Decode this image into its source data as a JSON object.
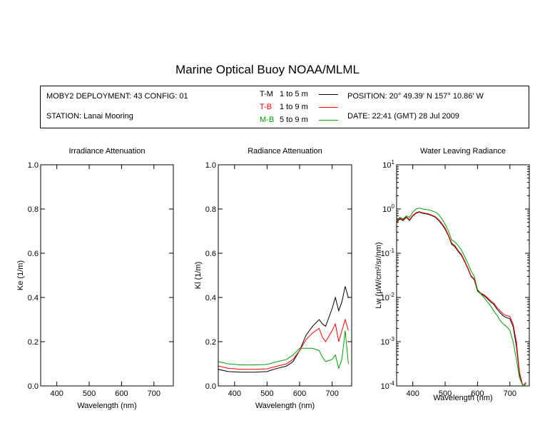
{
  "page": {
    "title": "Marine Optical Buoy NOAA/MLML"
  },
  "info": {
    "deployment": "MOBY2 DEPLOYMENT: 43 CONFIG: 01",
    "station": "STATION: Lanai Mooring",
    "position": "POSITION: 20° 49.39' N   157° 10.86' W",
    "date": "DATE: 22:41 (GMT) 28 Jul 2009",
    "legend": [
      {
        "code": "T-M",
        "range": "1 to 5  m",
        "color": "#000000"
      },
      {
        "code": "T-B",
        "range": "1 to 9  m",
        "color": "#ff0000"
      },
      {
        "code": "M-B",
        "range": "5 to 9  m",
        "color": "#00a000"
      }
    ]
  },
  "chart_data": [
    {
      "type": "line",
      "title": "Irradiance Attenuation",
      "xlabel": "Wavelength (nm)",
      "ylabel": "Ke  (1/m)",
      "xlim": [
        350,
        760
      ],
      "ylim": [
        0,
        1.0
      ],
      "xticks": [
        400,
        500,
        600,
        700
      ],
      "yticks": [
        0.0,
        0.2,
        0.4,
        0.6,
        0.8,
        1.0
      ],
      "ytick_labels": [
        "0.0",
        "0.2",
        "0.4",
        "0.6",
        "0.8",
        "1.0"
      ],
      "series": []
    },
    {
      "type": "line",
      "title": "Radiance Attenuation",
      "xlabel": "Wavelength (nm)",
      "ylabel": "Kl  (1/m)",
      "xlim": [
        350,
        760
      ],
      "ylim": [
        0,
        1.0
      ],
      "xticks": [
        400,
        500,
        600,
        700
      ],
      "yticks": [
        0.0,
        0.2,
        0.4,
        0.6,
        0.8,
        1.0
      ],
      "ytick_labels": [
        "0.0",
        "0.2",
        "0.4",
        "0.6",
        "0.8",
        "1.0"
      ],
      "series": [
        {
          "name": "T-M",
          "color": "#000000",
          "x": [
            350,
            380,
            420,
            460,
            500,
            520,
            560,
            580,
            600,
            620,
            640,
            660,
            670,
            680,
            700,
            710,
            720,
            730,
            740,
            750
          ],
          "y": [
            0.075,
            0.065,
            0.062,
            0.062,
            0.065,
            0.075,
            0.09,
            0.11,
            0.16,
            0.23,
            0.27,
            0.3,
            0.28,
            0.27,
            0.35,
            0.4,
            0.34,
            0.38,
            0.45,
            0.4
          ]
        },
        {
          "name": "T-B",
          "color": "#ff0000",
          "x": [
            350,
            380,
            420,
            460,
            500,
            520,
            560,
            580,
            600,
            620,
            640,
            660,
            670,
            680,
            700,
            710,
            720,
            730,
            740,
            750
          ],
          "y": [
            0.09,
            0.08,
            0.075,
            0.075,
            0.077,
            0.085,
            0.1,
            0.12,
            0.16,
            0.21,
            0.24,
            0.26,
            0.22,
            0.2,
            0.25,
            0.28,
            0.2,
            0.25,
            0.3,
            0.25
          ]
        },
        {
          "name": "M-B",
          "color": "#00a000",
          "x": [
            350,
            380,
            420,
            460,
            500,
            520,
            560,
            580,
            600,
            620,
            640,
            660,
            670,
            680,
            700,
            710,
            720,
            730,
            740,
            750
          ],
          "y": [
            0.11,
            0.1,
            0.095,
            0.095,
            0.097,
            0.105,
            0.12,
            0.14,
            0.17,
            0.17,
            0.17,
            0.16,
            0.13,
            0.11,
            0.12,
            0.14,
            0.08,
            0.12,
            0.25,
            0.1
          ]
        }
      ]
    },
    {
      "type": "line",
      "title": "Water Leaving Radiance",
      "xlabel": "Wavelength (nm)",
      "ylabel": "Lw  (μW/cm²/sr/nm)",
      "xscale": "linear",
      "yscale": "log",
      "xlim": [
        350,
        760
      ],
      "ylim": [
        0.0001,
        10
      ],
      "xticks": [
        400,
        500,
        600,
        700
      ],
      "yticks": [
        0.0001,
        0.001,
        0.01,
        0.1,
        1,
        10
      ],
      "ytick_labels": [
        {
          "base": "10",
          "exp": "-4"
        },
        {
          "base": "10",
          "exp": "-3"
        },
        {
          "base": "10",
          "exp": "-2"
        },
        {
          "base": "10",
          "exp": "-1"
        },
        {
          "base": "10",
          "exp": "0"
        },
        {
          "base": "10",
          "exp": "1"
        }
      ],
      "series": [
        {
          "name": "T-M",
          "color": "#000000",
          "x": [
            350,
            360,
            370,
            380,
            390,
            400,
            410,
            420,
            430,
            440,
            450,
            460,
            470,
            480,
            490,
            500,
            510,
            520,
            530,
            540,
            550,
            560,
            570,
            580,
            590,
            600,
            610,
            620,
            630,
            640,
            650,
            660,
            670,
            680,
            690,
            700,
            710,
            720,
            730,
            740,
            750
          ],
          "y": [
            0.5,
            0.6,
            0.55,
            0.65,
            0.55,
            0.7,
            0.8,
            0.85,
            0.8,
            0.78,
            0.75,
            0.7,
            0.65,
            0.55,
            0.45,
            0.35,
            0.25,
            0.16,
            0.14,
            0.11,
            0.09,
            0.065,
            0.045,
            0.03,
            0.025,
            0.014,
            0.012,
            0.011,
            0.0095,
            0.008,
            0.007,
            0.0055,
            0.0045,
            0.0038,
            0.0035,
            0.0033,
            0.0022,
            0.0008,
            0.00018,
            0.0001,
            0.00012
          ]
        },
        {
          "name": "T-B",
          "color": "#ff0000",
          "x": [
            350,
            360,
            370,
            380,
            390,
            400,
            410,
            420,
            430,
            440,
            450,
            460,
            470,
            480,
            490,
            500,
            510,
            520,
            530,
            540,
            550,
            560,
            570,
            580,
            590,
            600,
            610,
            620,
            630,
            640,
            650,
            660,
            670,
            680,
            690,
            700,
            710,
            720,
            730,
            740,
            750
          ],
          "y": [
            0.52,
            0.62,
            0.57,
            0.67,
            0.57,
            0.72,
            0.82,
            0.87,
            0.82,
            0.8,
            0.77,
            0.72,
            0.67,
            0.57,
            0.47,
            0.37,
            0.26,
            0.17,
            0.15,
            0.115,
            0.095,
            0.068,
            0.047,
            0.031,
            0.026,
            0.015,
            0.0125,
            0.0115,
            0.01,
            0.0085,
            0.0075,
            0.006,
            0.005,
            0.0042,
            0.0039,
            0.0037,
            0.0025,
            0.001,
            0.0002,
            0.0001,
            0.00012
          ]
        },
        {
          "name": "M-B",
          "color": "#00a000",
          "x": [
            350,
            360,
            370,
            380,
            390,
            400,
            410,
            420,
            430,
            440,
            450,
            460,
            470,
            480,
            490,
            500,
            510,
            520,
            530,
            540,
            550,
            560,
            570,
            580,
            590,
            600,
            610,
            620,
            630,
            640,
            650,
            660,
            670,
            680,
            690,
            700,
            710,
            720,
            730,
            740,
            750
          ],
          "y": [
            0.55,
            0.65,
            0.6,
            0.7,
            0.65,
            0.85,
            1.0,
            1.05,
            1.0,
            0.98,
            0.95,
            0.9,
            0.85,
            0.75,
            0.6,
            0.45,
            0.32,
            0.2,
            0.18,
            0.15,
            0.12,
            0.085,
            0.06,
            0.04,
            0.03,
            0.015,
            0.012,
            0.01,
            0.008,
            0.0065,
            0.005,
            0.004,
            0.003,
            0.0025,
            0.0022,
            0.0018,
            0.001,
            0.0004,
            0.00015,
            0.0001,
            0.00011
          ]
        }
      ]
    }
  ]
}
